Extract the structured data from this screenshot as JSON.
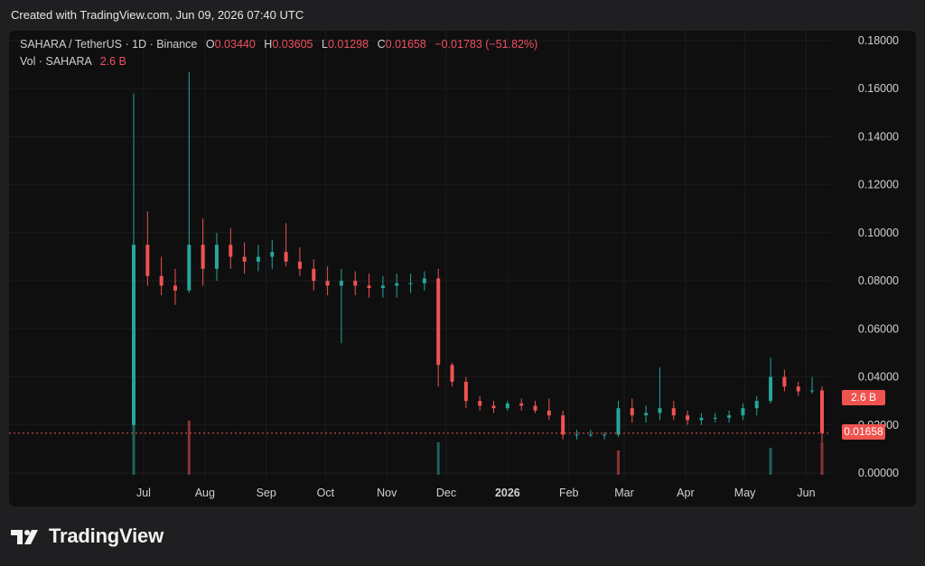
{
  "header": {
    "created": "Created with TradingView.com, Jun 09, 2026 07:40 UTC"
  },
  "legend": {
    "symbol": "SAHARA / TetherUS · 1D · Binance",
    "o_label": "O",
    "o_value": "0.03440",
    "h_label": "H",
    "h_value": "0.03605",
    "l_label": "L",
    "l_value": "0.01298",
    "c_label": "C",
    "c_value": "0.01658",
    "change": "−0.01783 (−51.82%)",
    "vol_label": "Vol · SAHARA",
    "vol_value": "2.6 B"
  },
  "badges": {
    "volume": "2.6 B",
    "price": "0.01658"
  },
  "footer": {
    "brand": "TradingView"
  },
  "colors": {
    "up": "#26a69a",
    "down": "#ef5350",
    "background": "#0f0f10",
    "grid": "#1c1c1e",
    "price_line": "#ef5350"
  },
  "chart_data": {
    "type": "candlestick",
    "symbol": "SAHARA / TetherUS",
    "interval": "1D",
    "exchange": "Binance",
    "y_ticks": [
      "0.18000",
      "0.16000",
      "0.14000",
      "0.12000",
      "0.10000",
      "0.08000",
      "0.06000",
      "0.04000",
      "0.02000",
      "0.00000"
    ],
    "ylim": [
      0,
      0.18
    ],
    "x_ticks": [
      "Jul",
      "Aug",
      "Sep",
      "Oct",
      "Nov",
      "Dec",
      "2026",
      "Feb",
      "Mar",
      "Apr",
      "May",
      "Jun"
    ],
    "start_date": "2025-06-26",
    "last_close": 0.01658,
    "candles_weekly_approx": [
      {
        "date": "2025-06-26",
        "o": 0.02,
        "h": 0.158,
        "l": 0.02,
        "c": 0.095
      },
      {
        "date": "2025-07-03",
        "o": 0.095,
        "h": 0.109,
        "l": 0.078,
        "c": 0.082
      },
      {
        "date": "2025-07-10",
        "o": 0.082,
        "h": 0.09,
        "l": 0.074,
        "c": 0.078
      },
      {
        "date": "2025-07-17",
        "o": 0.078,
        "h": 0.085,
        "l": 0.07,
        "c": 0.076
      },
      {
        "date": "2025-07-24",
        "o": 0.076,
        "h": 0.167,
        "l": 0.075,
        "c": 0.095
      },
      {
        "date": "2025-07-31",
        "o": 0.095,
        "h": 0.106,
        "l": 0.078,
        "c": 0.085
      },
      {
        "date": "2025-08-07",
        "o": 0.085,
        "h": 0.1,
        "l": 0.08,
        "c": 0.095
      },
      {
        "date": "2025-08-14",
        "o": 0.095,
        "h": 0.102,
        "l": 0.085,
        "c": 0.09
      },
      {
        "date": "2025-08-21",
        "o": 0.09,
        "h": 0.096,
        "l": 0.083,
        "c": 0.088
      },
      {
        "date": "2025-08-28",
        "o": 0.088,
        "h": 0.095,
        "l": 0.084,
        "c": 0.09
      },
      {
        "date": "2025-09-04",
        "o": 0.09,
        "h": 0.097,
        "l": 0.085,
        "c": 0.092
      },
      {
        "date": "2025-09-11",
        "o": 0.092,
        "h": 0.104,
        "l": 0.086,
        "c": 0.088
      },
      {
        "date": "2025-09-18",
        "o": 0.088,
        "h": 0.094,
        "l": 0.082,
        "c": 0.085
      },
      {
        "date": "2025-09-25",
        "o": 0.085,
        "h": 0.089,
        "l": 0.076,
        "c": 0.08
      },
      {
        "date": "2025-10-02",
        "o": 0.08,
        "h": 0.086,
        "l": 0.074,
        "c": 0.078
      },
      {
        "date": "2025-10-09",
        "o": 0.078,
        "h": 0.085,
        "l": 0.054,
        "c": 0.08
      },
      {
        "date": "2025-10-16",
        "o": 0.08,
        "h": 0.084,
        "l": 0.074,
        "c": 0.078
      },
      {
        "date": "2025-10-23",
        "o": 0.078,
        "h": 0.083,
        "l": 0.073,
        "c": 0.077
      },
      {
        "date": "2025-10-30",
        "o": 0.077,
        "h": 0.082,
        "l": 0.073,
        "c": 0.078
      },
      {
        "date": "2025-11-06",
        "o": 0.078,
        "h": 0.083,
        "l": 0.073,
        "c": 0.079
      },
      {
        "date": "2025-11-13",
        "o": 0.079,
        "h": 0.083,
        "l": 0.075,
        "c": 0.079
      },
      {
        "date": "2025-11-20",
        "o": 0.079,
        "h": 0.084,
        "l": 0.076,
        "c": 0.081
      },
      {
        "date": "2025-11-27",
        "o": 0.081,
        "h": 0.085,
        "l": 0.036,
        "c": 0.045
      },
      {
        "date": "2025-12-04",
        "o": 0.045,
        "h": 0.046,
        "l": 0.036,
        "c": 0.038
      },
      {
        "date": "2025-12-11",
        "o": 0.038,
        "h": 0.04,
        "l": 0.027,
        "c": 0.03
      },
      {
        "date": "2025-12-18",
        "o": 0.03,
        "h": 0.032,
        "l": 0.026,
        "c": 0.028
      },
      {
        "date": "2025-12-25",
        "o": 0.028,
        "h": 0.03,
        "l": 0.025,
        "c": 0.027
      },
      {
        "date": "2026-01-01",
        "o": 0.027,
        "h": 0.03,
        "l": 0.026,
        "c": 0.029
      },
      {
        "date": "2026-01-08",
        "o": 0.029,
        "h": 0.031,
        "l": 0.026,
        "c": 0.028
      },
      {
        "date": "2026-01-15",
        "o": 0.028,
        "h": 0.03,
        "l": 0.025,
        "c": 0.026
      },
      {
        "date": "2026-01-22",
        "o": 0.026,
        "h": 0.031,
        "l": 0.022,
        "c": 0.024
      },
      {
        "date": "2026-01-29",
        "o": 0.024,
        "h": 0.026,
        "l": 0.014,
        "c": 0.016
      },
      {
        "date": "2026-02-05",
        "o": 0.016,
        "h": 0.018,
        "l": 0.014,
        "c": 0.016
      },
      {
        "date": "2026-02-12",
        "o": 0.016,
        "h": 0.018,
        "l": 0.015,
        "c": 0.016
      },
      {
        "date": "2026-02-19",
        "o": 0.016,
        "h": 0.017,
        "l": 0.014,
        "c": 0.016
      },
      {
        "date": "2026-02-26",
        "o": 0.016,
        "h": 0.03,
        "l": 0.015,
        "c": 0.027
      },
      {
        "date": "2026-03-05",
        "o": 0.027,
        "h": 0.031,
        "l": 0.021,
        "c": 0.024
      },
      {
        "date": "2026-03-12",
        "o": 0.024,
        "h": 0.028,
        "l": 0.021,
        "c": 0.025
      },
      {
        "date": "2026-03-19",
        "o": 0.025,
        "h": 0.044,
        "l": 0.022,
        "c": 0.027
      },
      {
        "date": "2026-03-26",
        "o": 0.027,
        "h": 0.03,
        "l": 0.022,
        "c": 0.024
      },
      {
        "date": "2026-04-02",
        "o": 0.024,
        "h": 0.026,
        "l": 0.02,
        "c": 0.022
      },
      {
        "date": "2026-04-09",
        "o": 0.022,
        "h": 0.025,
        "l": 0.02,
        "c": 0.023
      },
      {
        "date": "2026-04-16",
        "o": 0.023,
        "h": 0.025,
        "l": 0.021,
        "c": 0.023
      },
      {
        "date": "2026-04-23",
        "o": 0.023,
        "h": 0.026,
        "l": 0.021,
        "c": 0.024
      },
      {
        "date": "2026-04-30",
        "o": 0.024,
        "h": 0.029,
        "l": 0.022,
        "c": 0.027
      },
      {
        "date": "2026-05-07",
        "o": 0.027,
        "h": 0.032,
        "l": 0.024,
        "c": 0.03
      },
      {
        "date": "2026-05-14",
        "o": 0.03,
        "h": 0.048,
        "l": 0.029,
        "c": 0.04
      },
      {
        "date": "2026-05-21",
        "o": 0.04,
        "h": 0.043,
        "l": 0.034,
        "c": 0.036
      },
      {
        "date": "2026-05-28",
        "o": 0.036,
        "h": 0.038,
        "l": 0.032,
        "c": 0.034
      },
      {
        "date": "2026-06-04",
        "o": 0.034,
        "h": 0.04,
        "l": 0.033,
        "c": 0.0344
      },
      {
        "date": "2026-06-09",
        "o": 0.0344,
        "h": 0.03605,
        "l": 0.01298,
        "c": 0.01658
      }
    ],
    "volume_spikes_relative": [
      {
        "date": "2025-06-26",
        "v": 1.0
      },
      {
        "date": "2025-07-24",
        "v": 1.0
      },
      {
        "date": "2025-11-27",
        "v": 0.6
      },
      {
        "date": "2026-02-26",
        "v": 0.45
      },
      {
        "date": "2026-05-14",
        "v": 0.5
      },
      {
        "date": "2026-06-09",
        "v": 0.6
      }
    ]
  }
}
